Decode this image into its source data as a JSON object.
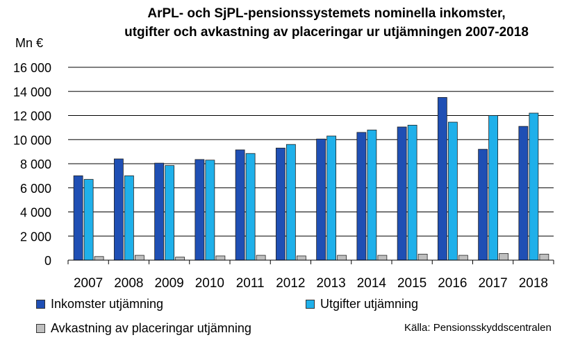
{
  "chart_data": {
    "type": "bar",
    "title": "ArPL- och SjPL-pensionssystemets nominella inkomster, utgifter och avkastning av placeringar ur utjämningen 2007-2018",
    "title_lines": [
      "ArPL- och SjPL-pensionssystemets nominella inkomster,",
      "utgifter och avkastning av placeringar ur utjämningen 2007-2018"
    ],
    "ylabel": "Mn €",
    "ylim": [
      0,
      16000
    ],
    "yticks": [
      0,
      2000,
      4000,
      6000,
      8000,
      10000,
      12000,
      14000,
      16000
    ],
    "ytick_labels": [
      "0",
      "2 000",
      "4 000",
      "6 000",
      "8 000",
      "10 000",
      "12 000",
      "14 000",
      "16 000"
    ],
    "grid": true,
    "legend_position": "bottom",
    "categories": [
      "2007",
      "2008",
      "2009",
      "2010",
      "2011",
      "2012",
      "2013",
      "2014",
      "2015",
      "2016",
      "2017",
      "2018"
    ],
    "series": [
      {
        "name": "Inkomster utjämning",
        "color": "#1f4fb4",
        "values": [
          7000,
          8400,
          8050,
          8350,
          9150,
          9300,
          10050,
          10600,
          11050,
          13500,
          9200,
          11100
        ]
      },
      {
        "name": "Utgifter utjämning",
        "color": "#1fb0ea",
        "values": [
          6700,
          7000,
          7850,
          8300,
          8850,
          9600,
          10300,
          10800,
          11200,
          11450,
          12000,
          12200
        ]
      },
      {
        "name": "Avkastning av placeringar utjämning",
        "color": "#bfbfbf",
        "values": [
          300,
          400,
          250,
          350,
          400,
          350,
          400,
          400,
          500,
          400,
          550,
          500
        ]
      }
    ],
    "source": "Källa: Pensionsskyddscentralen"
  }
}
